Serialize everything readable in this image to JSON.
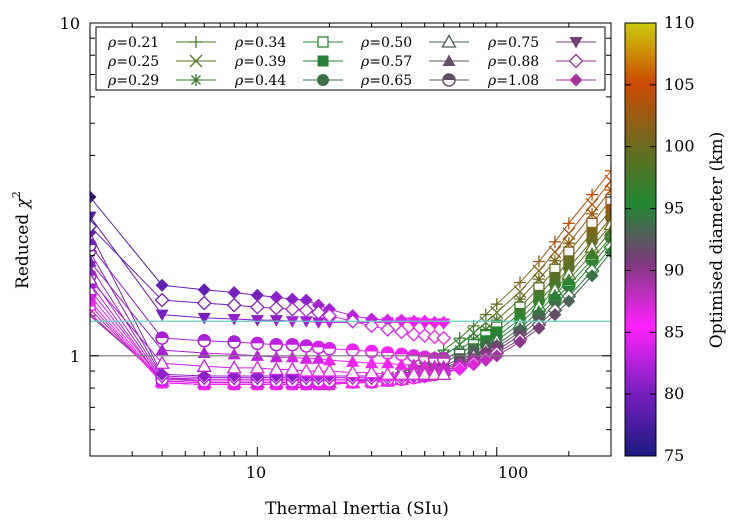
{
  "chart_data": {
    "type": "scatter",
    "xlabel": "Thermal Inertia (SIu)",
    "ylabel_main": "Reduced ",
    "ylabel_symbol": "χ",
    "ylabel_sup": "2",
    "xscale": "log",
    "yscale": "log",
    "xlim": [
      2,
      300
    ],
    "ylim": [
      0.5,
      10
    ],
    "x_tick_labels": [
      "10",
      "100"
    ],
    "y_tick_labels": [
      "1",
      "10"
    ],
    "grid": false,
    "legend_position": "top",
    "colorbar": {
      "label": "Optimised diameter (km)",
      "min": 75,
      "max": 110,
      "tick_labels": [
        "75",
        "80",
        "85",
        "90",
        "95",
        "100",
        "105",
        "110"
      ]
    },
    "reference_lines": [
      {
        "y": 1.0,
        "color": "#777777"
      },
      {
        "y": 1.27,
        "color": "#66ccbb"
      }
    ],
    "x": [
      2,
      4,
      6,
      8,
      10,
      12,
      14,
      16,
      18,
      20,
      25,
      30,
      35,
      40,
      45,
      50,
      55,
      60,
      70,
      80,
      90,
      100,
      125,
      150,
      175,
      200,
      250,
      300
    ],
    "series": [
      {
        "name": "ρ=0.21",
        "marker": "plus",
        "y": [
          1.32,
          0.86,
          0.84,
          0.84,
          0.84,
          0.84,
          0.84,
          0.84,
          0.84,
          0.84,
          0.84,
          0.85,
          0.87,
          0.89,
          0.92,
          0.95,
          0.99,
          1.04,
          1.13,
          1.23,
          1.33,
          1.43,
          1.66,
          1.92,
          2.2,
          2.5,
          3.05,
          3.6
        ],
        "d": [
          88,
          90,
          90,
          90,
          90,
          90,
          90,
          90,
          90,
          90,
          91,
          91,
          92,
          93,
          93,
          94,
          95,
          96,
          97,
          98,
          99,
          100,
          101,
          102,
          103,
          104,
          105,
          106
        ]
      },
      {
        "name": "ρ=0.25",
        "marker": "x",
        "y": [
          1.34,
          0.85,
          0.84,
          0.84,
          0.84,
          0.84,
          0.84,
          0.84,
          0.84,
          0.84,
          0.84,
          0.85,
          0.86,
          0.88,
          0.9,
          0.93,
          0.96,
          1.0,
          1.08,
          1.17,
          1.26,
          1.35,
          1.56,
          1.8,
          2.05,
          2.33,
          2.85,
          3.35
        ],
        "d": [
          88,
          90,
          90,
          90,
          90,
          90,
          90,
          90,
          90,
          90,
          90,
          91,
          91,
          92,
          93,
          93,
          94,
          95,
          96,
          97,
          98,
          99,
          100,
          101,
          102,
          103,
          104,
          105
        ]
      },
      {
        "name": "ρ=0.29",
        "marker": "star",
        "y": [
          1.38,
          0.84,
          0.83,
          0.83,
          0.83,
          0.83,
          0.83,
          0.83,
          0.83,
          0.83,
          0.83,
          0.84,
          0.85,
          0.87,
          0.89,
          0.91,
          0.94,
          0.97,
          1.04,
          1.12,
          1.2,
          1.28,
          1.48,
          1.7,
          1.93,
          2.18,
          2.67,
          3.15
        ],
        "d": [
          87,
          89,
          89,
          89,
          89,
          89,
          89,
          89,
          89,
          89,
          90,
          90,
          91,
          91,
          92,
          92,
          93,
          94,
          95,
          96,
          97,
          98,
          99,
          100,
          101,
          102,
          103,
          104
        ]
      },
      {
        "name": "ρ=0.34",
        "marker": "square-open",
        "y": [
          1.42,
          0.83,
          0.82,
          0.82,
          0.82,
          0.82,
          0.82,
          0.82,
          0.82,
          0.82,
          0.83,
          0.84,
          0.85,
          0.86,
          0.88,
          0.9,
          0.92,
          0.95,
          1.01,
          1.08,
          1.15,
          1.22,
          1.4,
          1.6,
          1.82,
          2.05,
          2.5,
          2.95
        ],
        "d": [
          86,
          88,
          88,
          88,
          88,
          88,
          88,
          88,
          88,
          89,
          89,
          89,
          90,
          90,
          91,
          91,
          92,
          93,
          94,
          95,
          96,
          97,
          98,
          99,
          100,
          101,
          102,
          103
        ]
      },
      {
        "name": "ρ=0.39",
        "marker": "square",
        "y": [
          1.46,
          0.83,
          0.82,
          0.82,
          0.82,
          0.82,
          0.82,
          0.82,
          0.82,
          0.82,
          0.83,
          0.83,
          0.84,
          0.85,
          0.87,
          0.89,
          0.91,
          0.93,
          0.98,
          1.05,
          1.11,
          1.18,
          1.34,
          1.52,
          1.72,
          1.93,
          2.35,
          2.75
        ],
        "d": [
          85,
          87,
          87,
          87,
          87,
          87,
          87,
          87,
          87,
          88,
          88,
          88,
          89,
          89,
          90,
          90,
          91,
          92,
          93,
          94,
          95,
          96,
          97,
          98,
          99,
          100,
          101,
          102
        ]
      },
      {
        "name": "ρ=0.44",
        "marker": "circle",
        "y": [
          1.52,
          0.83,
          0.82,
          0.82,
          0.82,
          0.82,
          0.82,
          0.82,
          0.82,
          0.82,
          0.83,
          0.83,
          0.84,
          0.85,
          0.86,
          0.88,
          0.9,
          0.92,
          0.96,
          1.02,
          1.08,
          1.14,
          1.29,
          1.46,
          1.64,
          1.84,
          2.22,
          2.6
        ],
        "d": [
          84,
          86,
          86,
          86,
          86,
          86,
          86,
          86,
          86,
          87,
          87,
          87,
          88,
          88,
          89,
          89,
          90,
          91,
          92,
          93,
          94,
          95,
          96,
          97,
          98,
          99,
          100,
          101
        ]
      },
      {
        "name": "ρ=0.50",
        "marker": "triangle-open",
        "y": [
          1.58,
          0.84,
          0.83,
          0.83,
          0.83,
          0.83,
          0.83,
          0.83,
          0.83,
          0.83,
          0.83,
          0.84,
          0.84,
          0.85,
          0.86,
          0.87,
          0.89,
          0.91,
          0.95,
          1.0,
          1.05,
          1.11,
          1.25,
          1.41,
          1.58,
          1.76,
          2.12,
          2.48
        ],
        "d": [
          83,
          85,
          85,
          85,
          85,
          85,
          85,
          85,
          85,
          86,
          86,
          86,
          87,
          87,
          88,
          88,
          89,
          90,
          91,
          92,
          93,
          94,
          95,
          96,
          97,
          98,
          99,
          100
        ]
      },
      {
        "name": "ρ=0.57",
        "marker": "triangle",
        "y": [
          1.65,
          0.84,
          0.83,
          0.83,
          0.83,
          0.83,
          0.83,
          0.83,
          0.83,
          0.83,
          0.83,
          0.84,
          0.84,
          0.85,
          0.86,
          0.87,
          0.88,
          0.9,
          0.94,
          0.98,
          1.03,
          1.08,
          1.21,
          1.36,
          1.52,
          1.69,
          2.03,
          2.37
        ],
        "d": [
          82,
          84,
          84,
          84,
          84,
          84,
          84,
          84,
          85,
          85,
          85,
          85,
          86,
          86,
          87,
          87,
          88,
          89,
          90,
          91,
          92,
          93,
          94,
          95,
          96,
          97,
          98,
          99
        ]
      },
      {
        "name": "ρ=0.65",
        "marker": "circle-half",
        "y": [
          1.74,
          0.85,
          0.84,
          0.84,
          0.84,
          0.84,
          0.84,
          0.84,
          0.84,
          0.84,
          0.84,
          0.84,
          0.85,
          0.85,
          0.86,
          0.87,
          0.88,
          0.9,
          0.93,
          0.97,
          1.01,
          1.06,
          1.18,
          1.32,
          1.47,
          1.63,
          1.95,
          2.28
        ],
        "d": [
          82,
          83,
          84,
          84,
          84,
          84,
          84,
          84,
          84,
          84,
          85,
          85,
          85,
          86,
          86,
          87,
          88,
          88,
          89,
          90,
          91,
          92,
          93,
          94,
          95,
          96,
          97,
          98
        ]
      },
      {
        "name": "ρ=0.75",
        "marker": "triangle-down",
        "y": [
          1.86,
          0.86,
          0.85,
          0.85,
          0.85,
          0.85,
          0.85,
          0.85,
          0.85,
          0.85,
          0.85,
          0.85,
          0.85,
          0.86,
          0.86,
          0.87,
          0.88,
          0.89,
          0.92,
          0.96,
          1.0,
          1.04,
          1.15,
          1.28,
          1.42,
          1.57,
          1.88,
          2.2
        ],
        "d": [
          81,
          83,
          83,
          83,
          83,
          83,
          83,
          83,
          83,
          84,
          84,
          84,
          84,
          85,
          85,
          86,
          87,
          87,
          88,
          89,
          90,
          91,
          92,
          93,
          94,
          95,
          96,
          97
        ]
      },
      {
        "name": "ρ=0.88",
        "marker": "diamond-open",
        "y": [
          2.05,
          0.87,
          0.86,
          0.86,
          0.86,
          0.86,
          0.86,
          0.86,
          0.86,
          0.86,
          0.86,
          0.86,
          0.86,
          0.86,
          0.87,
          0.87,
          0.88,
          0.89,
          0.92,
          0.95,
          0.98,
          1.02,
          1.12,
          1.24,
          1.37,
          1.51,
          1.8,
          2.12
        ],
        "d": [
          80,
          82,
          82,
          82,
          82,
          82,
          82,
          82,
          82,
          83,
          83,
          83,
          83,
          84,
          84,
          85,
          86,
          86,
          87,
          88,
          89,
          90,
          91,
          92,
          93,
          94,
          95,
          96
        ]
      },
      {
        "name": "ρ=1.08",
        "marker": "diamond",
        "y": [
          2.35,
          0.88,
          0.87,
          0.87,
          0.87,
          0.87,
          0.87,
          0.87,
          0.87,
          0.87,
          0.87,
          0.87,
          0.87,
          0.87,
          0.87,
          0.87,
          0.88,
          0.89,
          0.91,
          0.94,
          0.97,
          1.0,
          1.1,
          1.21,
          1.33,
          1.46,
          1.74,
          2.05
        ],
        "d": [
          79,
          81,
          81,
          81,
          81,
          81,
          81,
          82,
          82,
          82,
          82,
          82,
          82,
          83,
          83,
          84,
          85,
          85,
          86,
          87,
          88,
          89,
          90,
          91,
          92,
          93,
          94,
          95
        ]
      },
      {
        "name": "",
        "marker": "triangle-down",
        "y": [
          2.62,
          1.33,
          1.3,
          1.29,
          1.28,
          1.28,
          1.27,
          1.27,
          1.26,
          1.26,
          1.26,
          1.26,
          1.26,
          1.26,
          1.26,
          1.25,
          1.25,
          1.25
        ],
        "d": [
          78,
          80,
          80,
          81,
          81,
          81,
          82,
          82,
          82,
          83,
          83,
          84,
          84,
          85,
          85,
          86,
          86,
          87
        ]
      },
      {
        "name": "",
        "marker": "diamond",
        "y": [
          3.0,
          1.63,
          1.58,
          1.55,
          1.52,
          1.5,
          1.48,
          1.47,
          1.42,
          1.38,
          1.32,
          1.29,
          1.28,
          1.28,
          1.27,
          1.27,
          1.26,
          1.26
        ],
        "d": [
          77,
          79,
          79,
          80,
          80,
          81,
          81,
          81,
          82,
          82,
          83,
          83,
          84,
          84,
          85,
          85,
          86,
          86
        ]
      },
      {
        "name": "",
        "marker": "diamond-open",
        "y": [
          2.45,
          1.47,
          1.44,
          1.42,
          1.4,
          1.39,
          1.38,
          1.37,
          1.35,
          1.32,
          1.27,
          1.23,
          1.2,
          1.18,
          1.16,
          1.15,
          1.14,
          1.13
        ],
        "d": [
          78,
          80,
          80,
          80,
          81,
          81,
          82,
          82,
          82,
          83,
          83,
          84,
          84,
          85,
          85,
          86,
          86,
          87
        ]
      },
      {
        "name": "",
        "marker": "circle-half",
        "y": [
          2.15,
          1.13,
          1.11,
          1.1,
          1.09,
          1.08,
          1.08,
          1.07,
          1.06,
          1.05,
          1.04,
          1.03,
          1.02,
          1.01,
          1.0,
          0.99,
          0.98,
          0.98
        ],
        "d": [
          80,
          82,
          82,
          82,
          83,
          83,
          83,
          83,
          84,
          84,
          85,
          85,
          86,
          86,
          87,
          87,
          88,
          88
        ]
      },
      {
        "name": "",
        "marker": "triangle",
        "y": [
          1.92,
          1.04,
          1.02,
          1.01,
          1.0,
          0.99,
          0.99,
          0.98,
          0.98,
          0.97,
          0.96,
          0.95,
          0.95,
          0.94,
          0.94,
          0.93,
          0.93,
          0.93
        ],
        "d": [
          80,
          82,
          82,
          83,
          83,
          83,
          84,
          84,
          84,
          85,
          85,
          86,
          86,
          86,
          87,
          87,
          88,
          88
        ]
      },
      {
        "name": "",
        "marker": "triangle-open",
        "y": [
          1.7,
          0.95,
          0.93,
          0.92,
          0.92,
          0.91,
          0.91,
          0.9,
          0.9,
          0.9,
          0.89,
          0.89,
          0.88,
          0.88,
          0.88,
          0.88,
          0.88,
          0.88
        ],
        "d": [
          81,
          83,
          83,
          83,
          84,
          84,
          84,
          85,
          85,
          85,
          86,
          86,
          86,
          87,
          87,
          88,
          88,
          88
        ]
      }
    ]
  }
}
